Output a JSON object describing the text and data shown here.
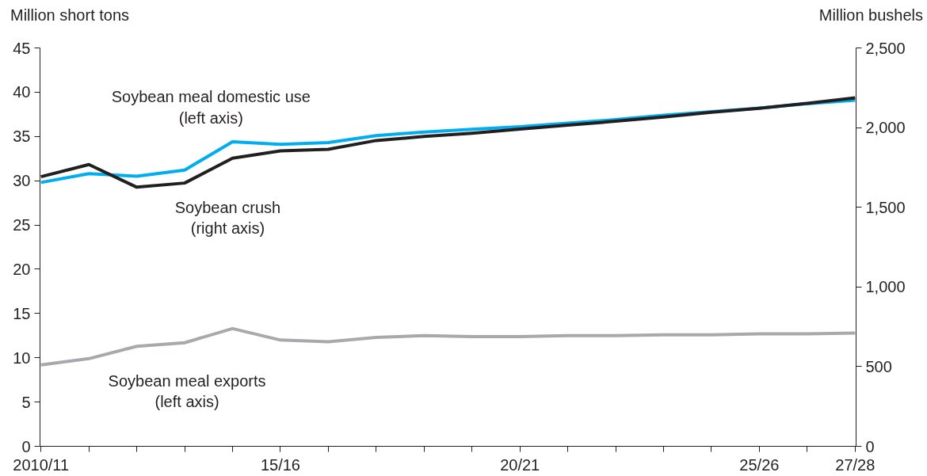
{
  "chart_data": {
    "type": "line",
    "categories": [
      "2010/11",
      null,
      null,
      null,
      null,
      "15/16",
      null,
      null,
      null,
      null,
      "20/21",
      null,
      null,
      null,
      null,
      "25/26",
      null,
      "27/28"
    ],
    "ylabel": "Million short tons",
    "y2label": "Million bushels",
    "ylim": [
      0,
      45
    ],
    "yticks": [
      0,
      5,
      10,
      15,
      20,
      25,
      30,
      35,
      40,
      45
    ],
    "y2lim": [
      0,
      2500
    ],
    "y2ticks": [
      0,
      {
        "value": 500,
        "label": "500"
      },
      {
        "value": 1000,
        "label": "1,000"
      },
      {
        "value": 1500,
        "label": "1,500"
      },
      {
        "value": 2000,
        "label": "2,000"
      },
      {
        "value": 2500,
        "label": "2,500"
      }
    ],
    "grid": false,
    "line_style": "solid",
    "marker": "none",
    "series": [
      {
        "name": "Soybean meal domestic use\n(left axis)",
        "color": "#00aeef",
        "values": [
          29.8,
          30.8,
          30.5,
          31.2,
          34.4,
          34.1,
          34.3,
          35.1,
          35.5,
          35.8,
          36.1,
          36.5,
          36.9,
          37.4,
          37.8,
          38.2,
          38.7,
          39.1
        ]
      },
      {
        "name": "Soybean crush\n(right axis)",
        "color": "#231f20",
        "axis": "y2",
        "values": [
          1692,
          1768,
          1626,
          1652,
          1808,
          1854,
          1864,
          1919,
          1944,
          1965,
          1990,
          2015,
          2040,
          2066,
          2096,
          2121,
          2152,
          2187
        ]
      },
      {
        "name": "Soybean meal exports\n(left axis)",
        "color": "#a7a9ac",
        "values": [
          9.2,
          9.9,
          11.3,
          11.7,
          13.3,
          12.0,
          11.8,
          12.3,
          12.5,
          12.4,
          12.4,
          12.5,
          12.5,
          12.6,
          12.6,
          12.7,
          12.7,
          12.8
        ]
      }
    ]
  }
}
